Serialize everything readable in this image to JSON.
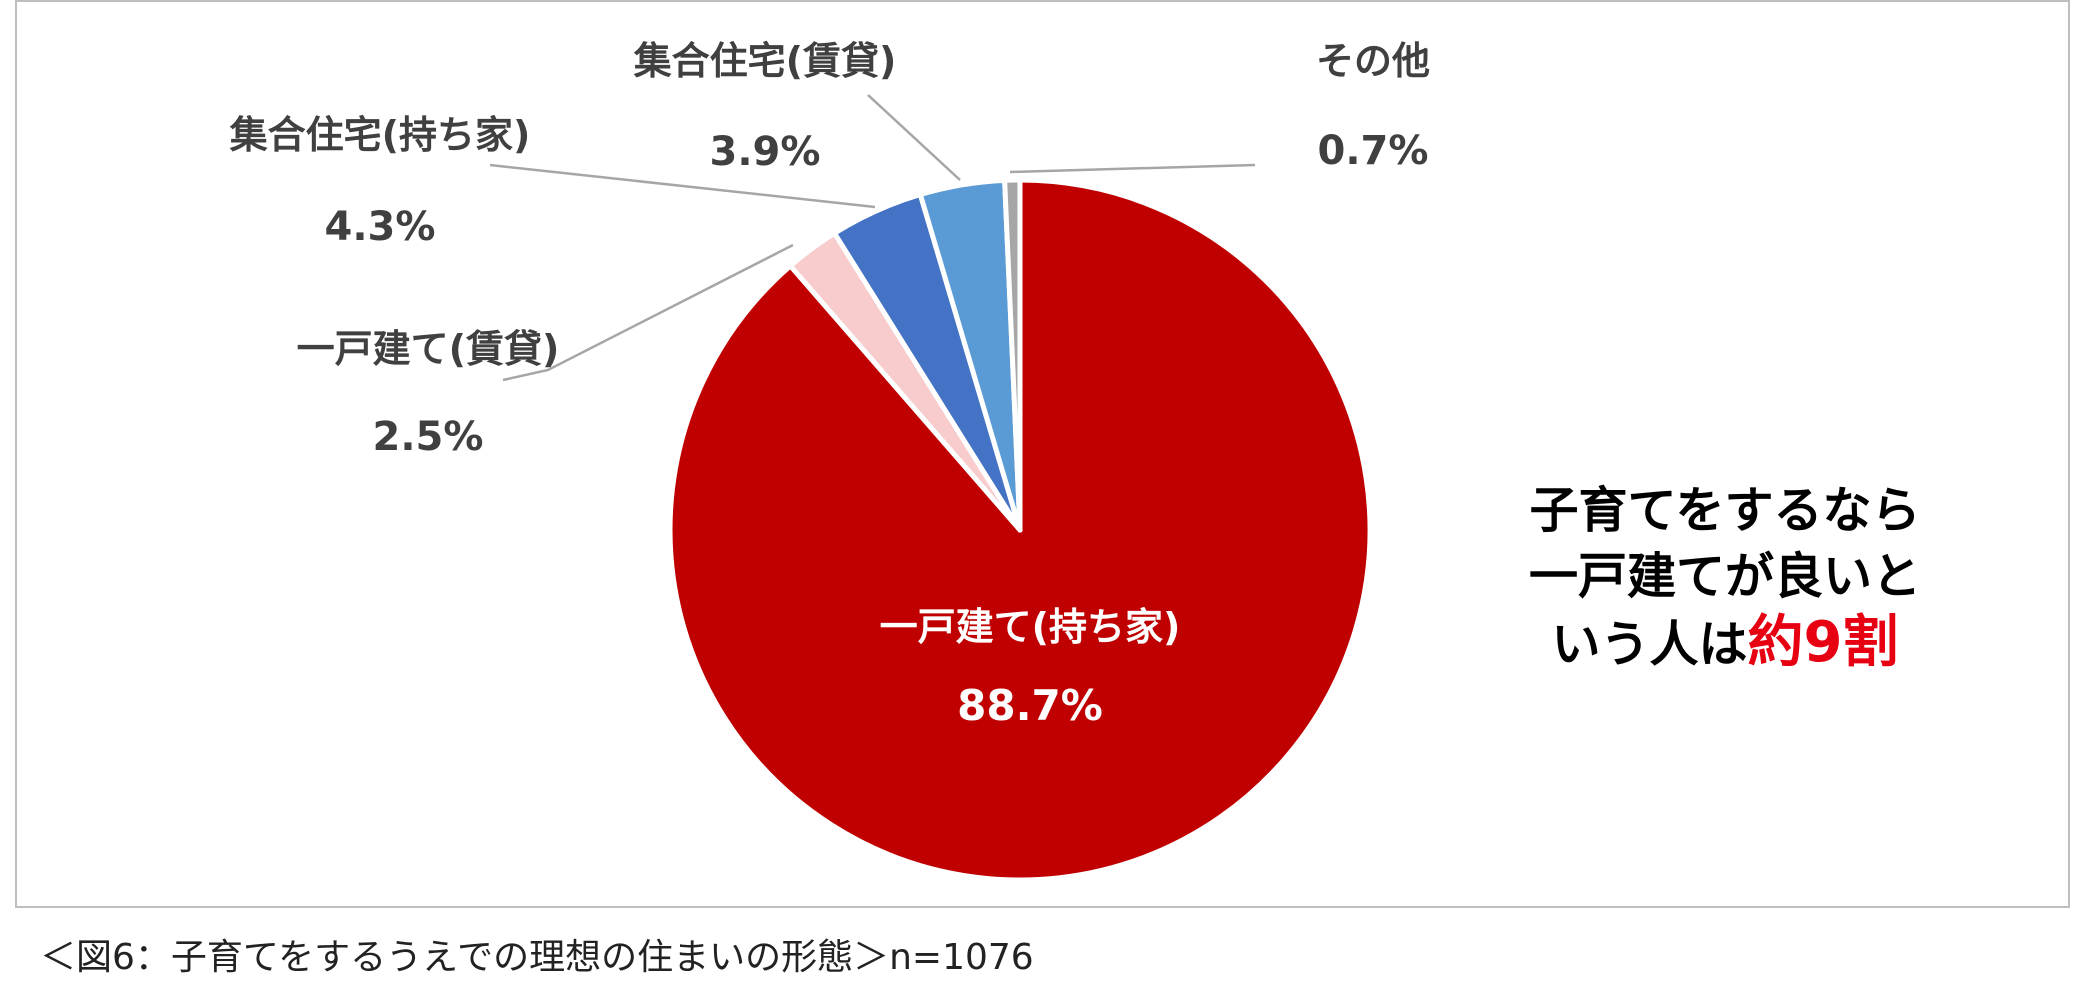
{
  "chart_data": {
    "type": "pie",
    "start_angle_deg": 0,
    "direction": "clockwise",
    "slices": [
      {
        "label": "一戸建て(持ち家)",
        "value": 88.7,
        "value_label": "88.7%",
        "color": "#c00000"
      },
      {
        "label": "一戸建て(賃貸)",
        "value": 2.5,
        "value_label": "2.5%",
        "color": "#f8cbcc"
      },
      {
        "label": "集合住宅(持ち家)",
        "value": 4.3,
        "value_label": "4.3%",
        "color": "#4472c4"
      },
      {
        "label": "集合住宅(賃貸)",
        "value": 3.9,
        "value_label": "3.9%",
        "color": "#5b9bd5"
      },
      {
        "label": "その他",
        "value": 0.7,
        "value_label": "0.7%",
        "color": "#a6a6a6"
      }
    ]
  },
  "callout": {
    "line1": "子育てをするなら",
    "line2": "一戸建てが良いと",
    "line3_prefix": "いう人は",
    "line3_highlight": "約9割",
    "highlight_color": "#e60012"
  },
  "caption": "＜図6：子育てをするうえでの理想の住まいの形態＞n=1076"
}
